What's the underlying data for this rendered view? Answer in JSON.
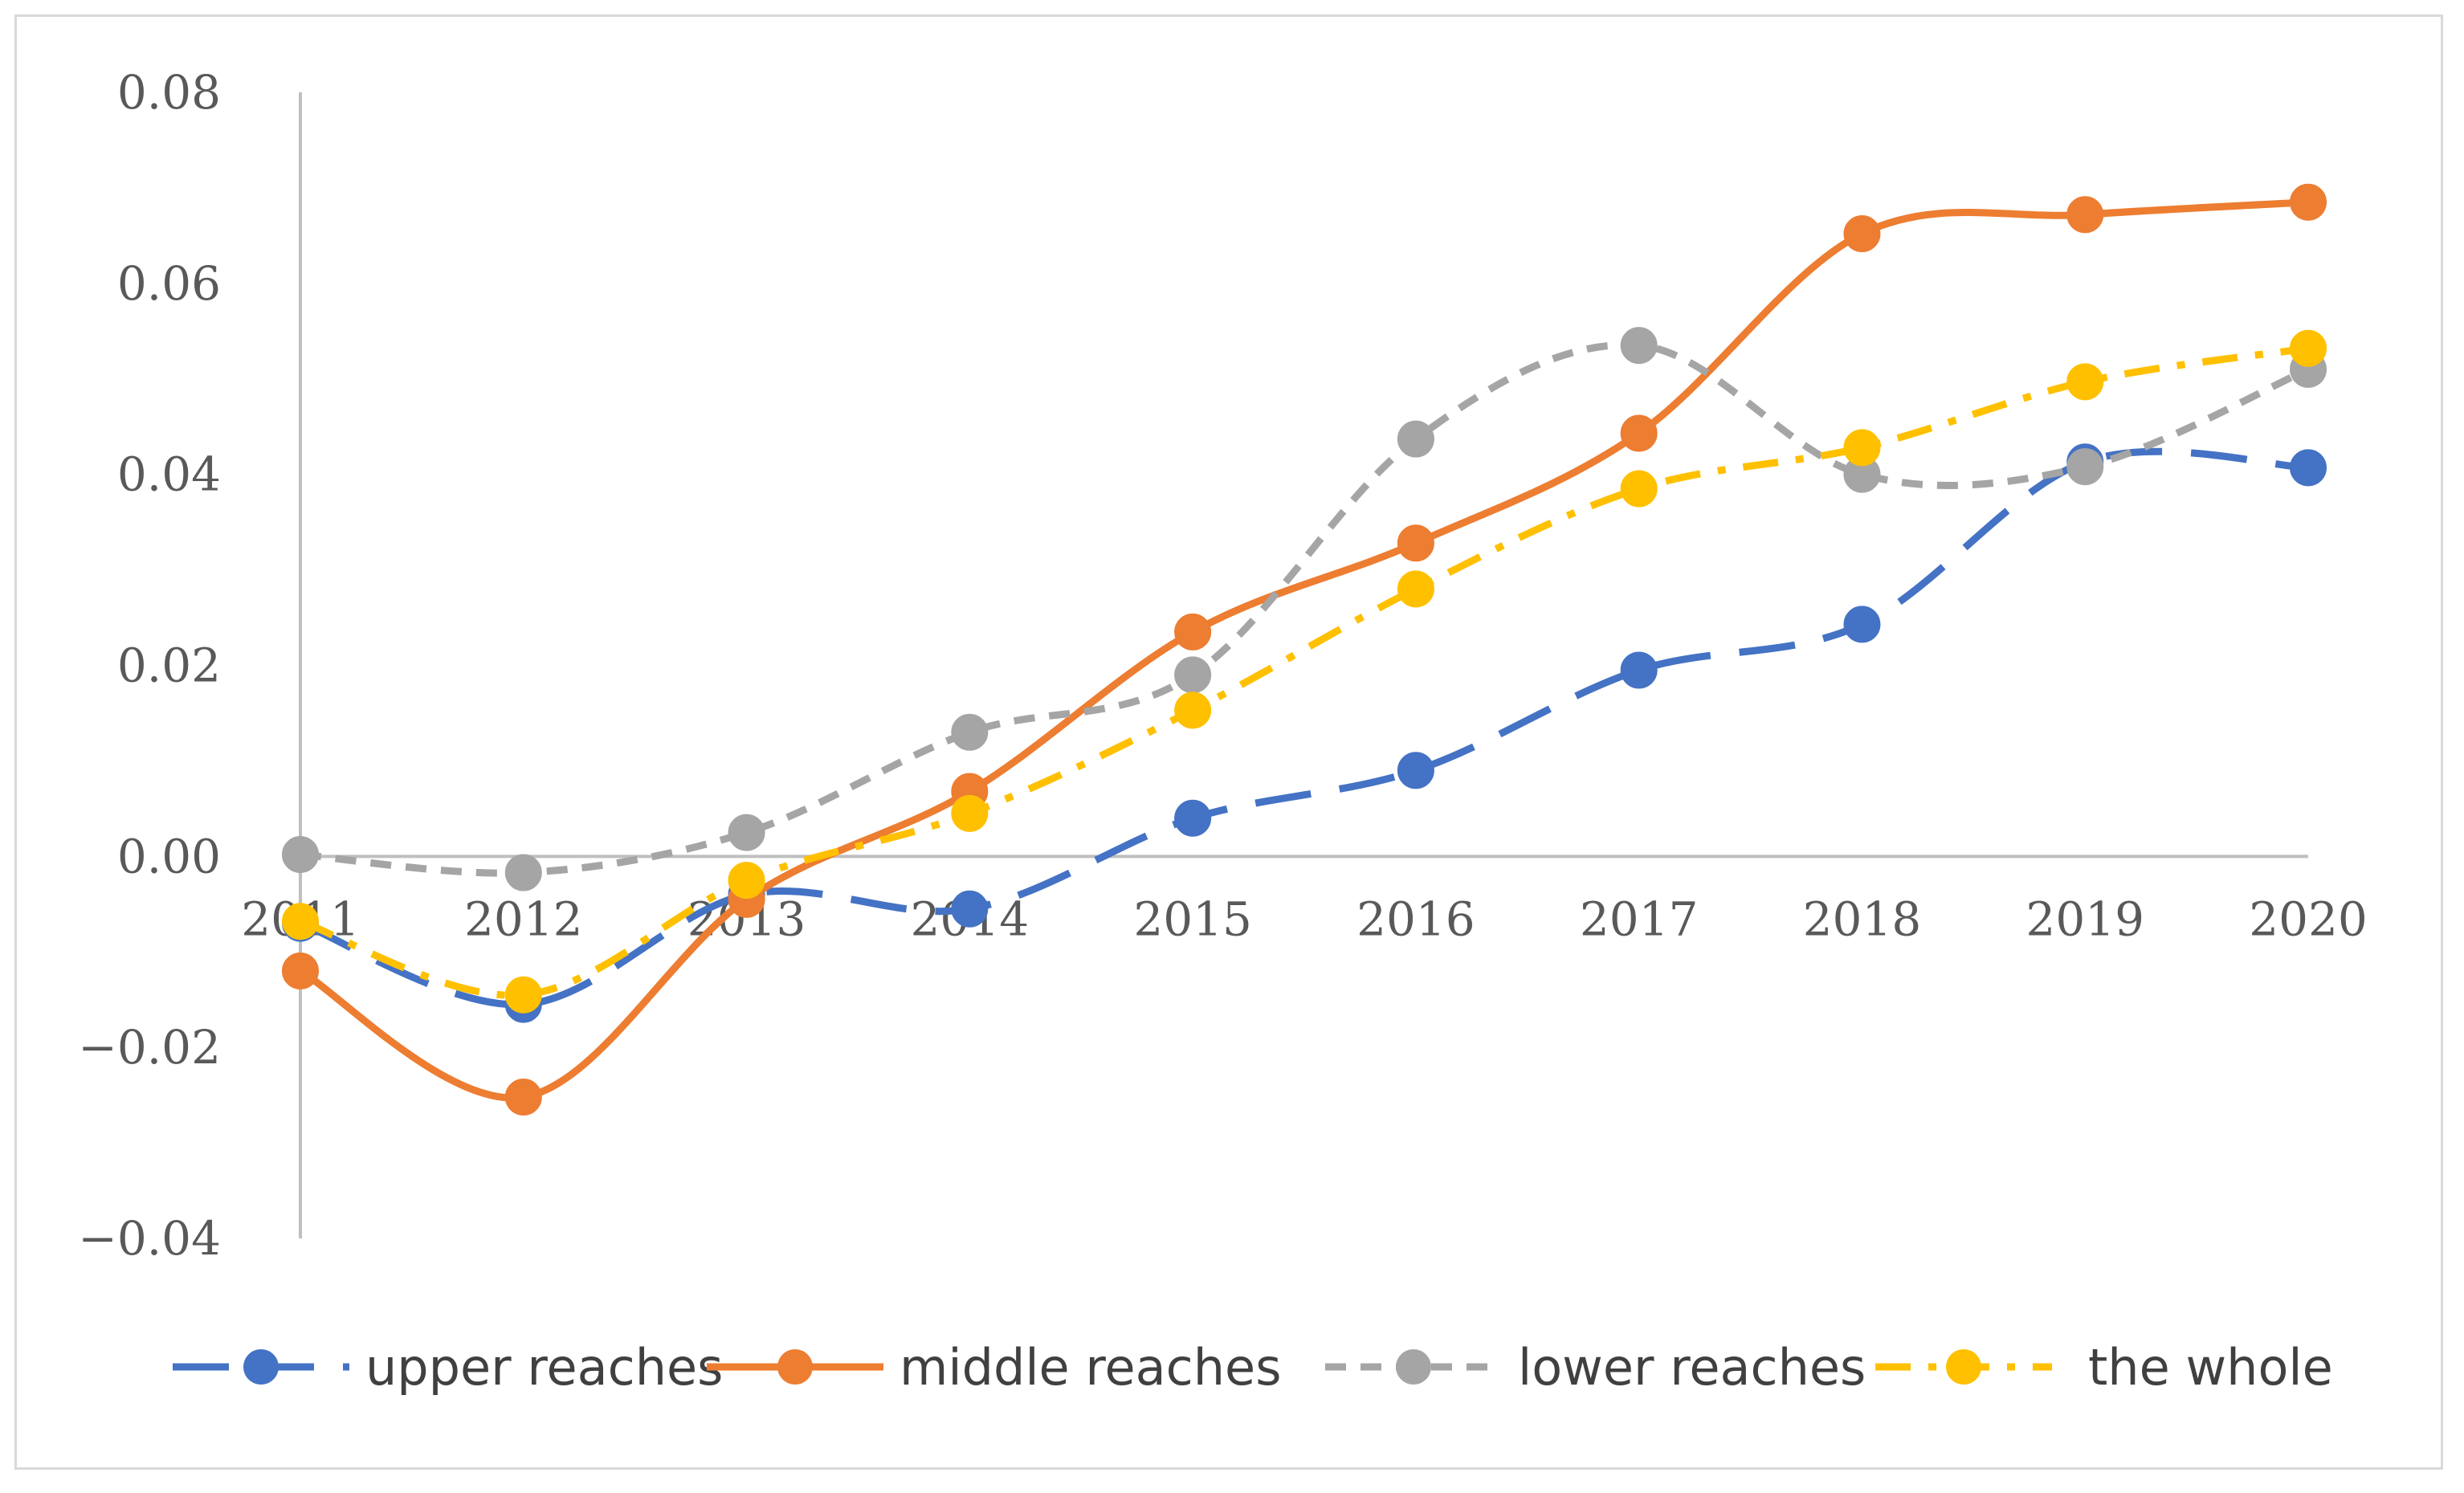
{
  "chart_data": {
    "type": "line",
    "title": "",
    "xlabel": "",
    "ylabel": "",
    "categories": [
      "2011",
      "2012",
      "2013",
      "2014",
      "2015",
      "2016",
      "2017",
      "2018",
      "2019",
      "2020"
    ],
    "ylim": [
      -0.04,
      0.08
    ],
    "yticks": [
      "0.08",
      "0.06",
      "0.04",
      "0.02",
      "0.00",
      "−0.02",
      "−0.04"
    ],
    "ytick_values": [
      0.08,
      0.06,
      0.04,
      0.02,
      0.0,
      -0.02,
      -0.04
    ],
    "legend_position": "bottom",
    "series": [
      {
        "name": "upper reaches",
        "color": "#4472c4",
        "dash": "long-dash",
        "values": [
          -0.007,
          -0.0155,
          -0.004,
          -0.0055,
          0.004,
          0.009,
          0.0195,
          0.0243,
          0.0413,
          0.0407
        ]
      },
      {
        "name": "middle reaches",
        "color": "#ed7d31",
        "dash": "solid",
        "values": [
          -0.012,
          -0.0252,
          -0.0045,
          0.0068,
          0.0235,
          0.0328,
          0.0443,
          0.0652,
          0.0672,
          0.0685
        ]
      },
      {
        "name": "lower reaches",
        "color": "#a5a5a5",
        "dash": "short-dash",
        "values": [
          0.0002,
          -0.0017,
          0.0025,
          0.013,
          0.019,
          0.0437,
          0.0535,
          0.04,
          0.0408,
          0.051
        ]
      },
      {
        "name": "the whole",
        "color": "#ffc000",
        "dash": "dash-dot",
        "values": [
          -0.0068,
          -0.0145,
          -0.0025,
          0.0045,
          0.0153,
          0.028,
          0.0385,
          0.0428,
          0.0497,
          0.0532
        ]
      }
    ]
  }
}
